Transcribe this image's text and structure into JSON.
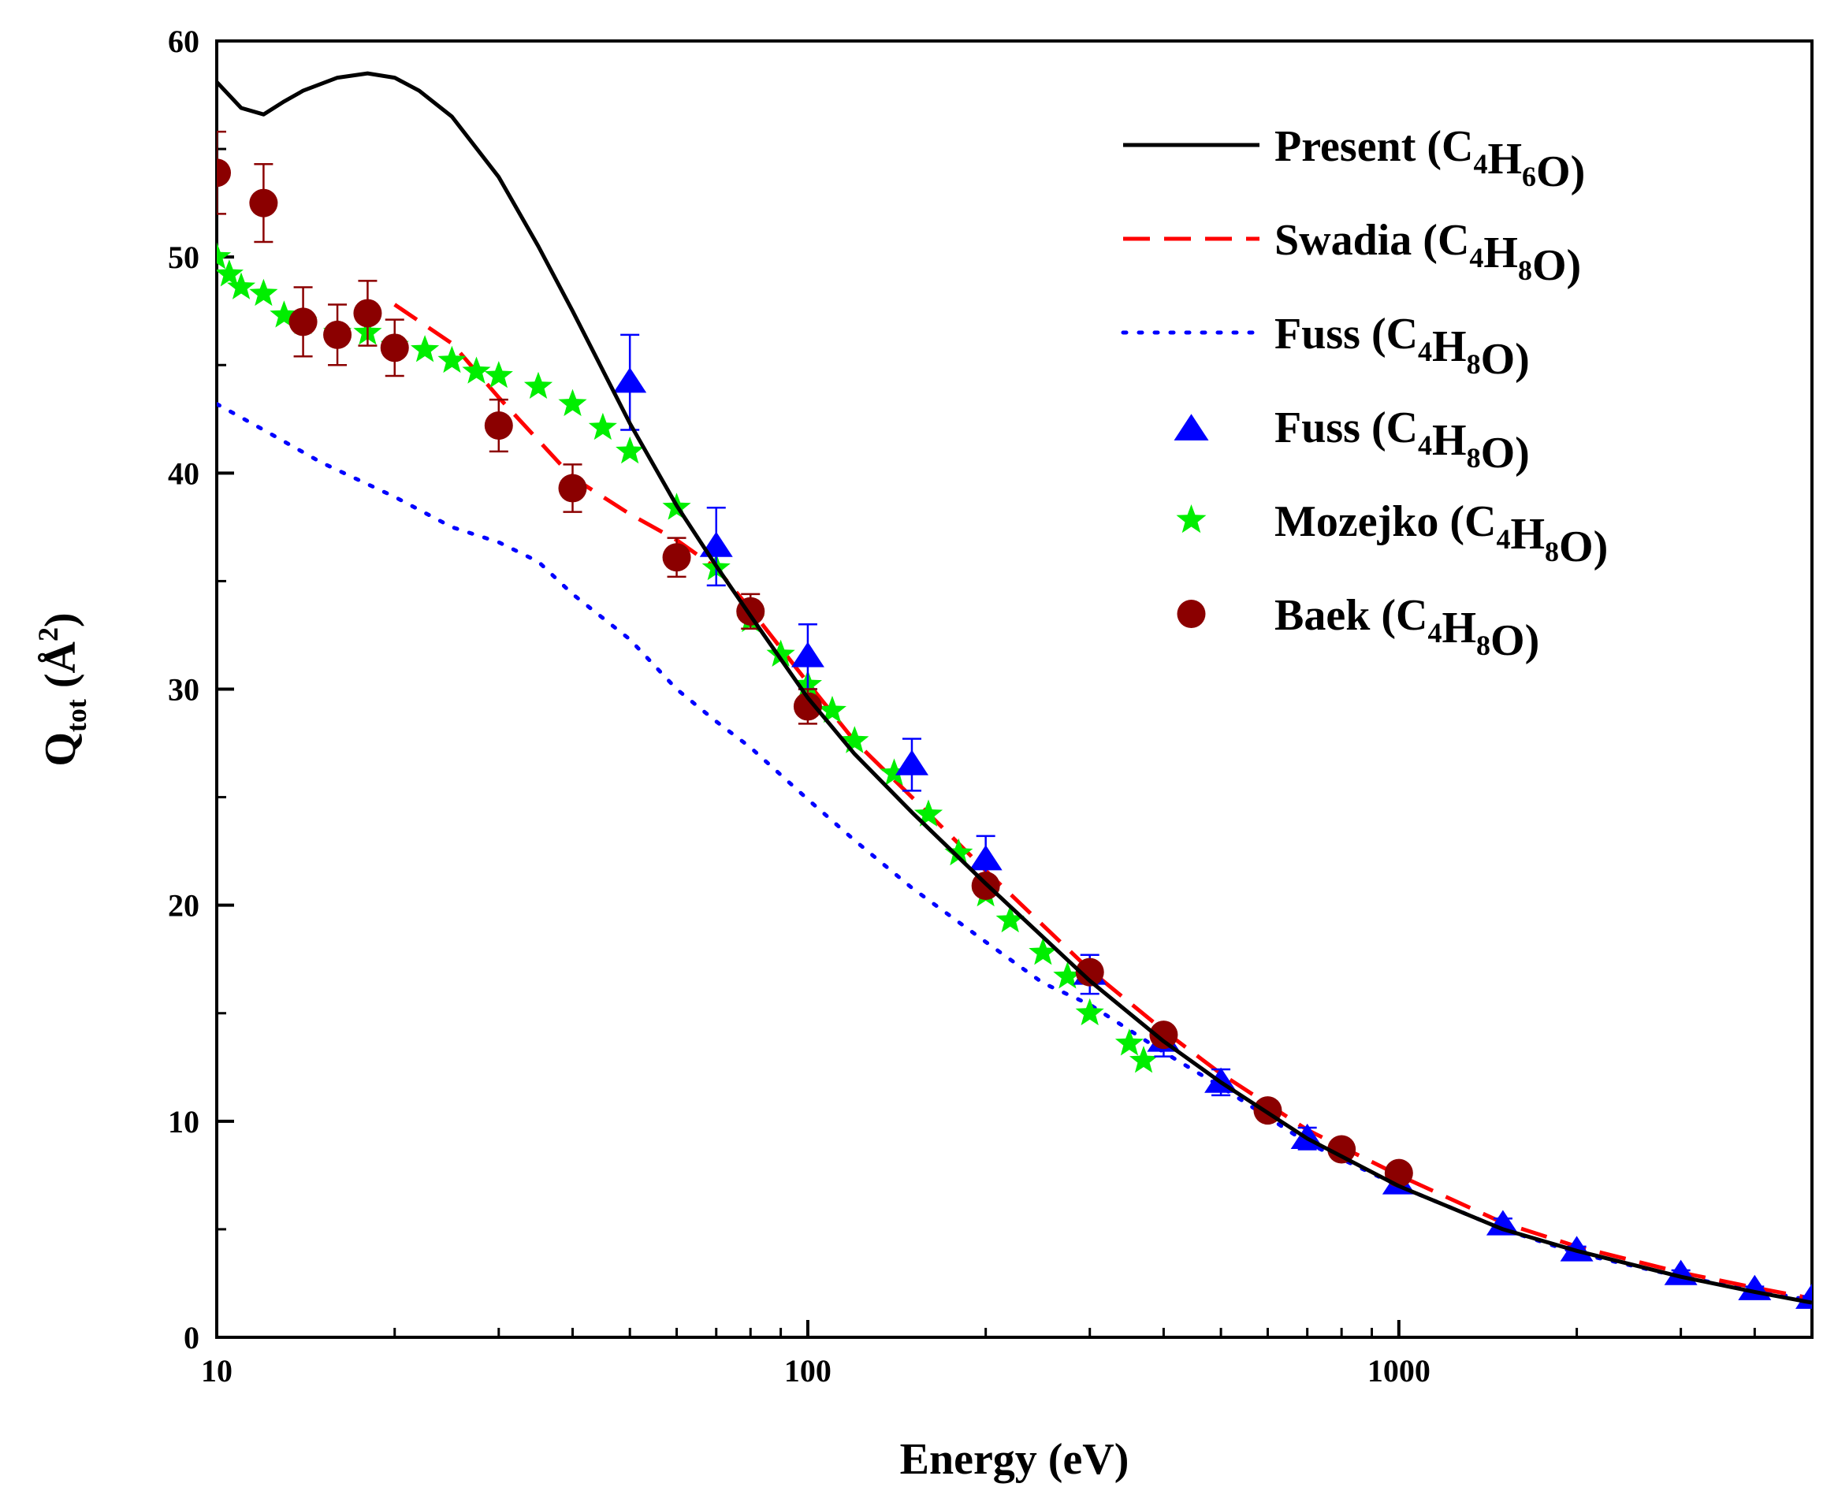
{
  "chart_data": {
    "type": "line",
    "title": "",
    "xlabel": "Energy (eV)",
    "ylabel": {
      "main": "Q",
      "sub": "tot",
      "unit_open": " (Å",
      "unit_sup": "2",
      "unit_close": ")"
    },
    "xscale": "log",
    "xlim": [
      10,
      5000
    ],
    "ylim": [
      0,
      60
    ],
    "x_ticks": [
      10,
      100,
      1000
    ],
    "x_tick_labels": [
      "10",
      "100",
      "1000"
    ],
    "y_ticks": [
      0,
      10,
      20,
      30,
      40,
      50,
      60
    ],
    "y_tick_labels": [
      "0",
      "10",
      "20",
      "30",
      "40",
      "50",
      "60"
    ],
    "legend_position": "top-right",
    "series": [
      {
        "name": "Present (C4H6O)",
        "legend": {
          "name": "Present",
          "formula": [
            [
              "C",
              "4"
            ],
            [
              "H",
              "6"
            ],
            [
              "O",
              ""
            ]
          ]
        },
        "style": "solid",
        "color": "#000000",
        "x": [
          10,
          11,
          12,
          13,
          14,
          16,
          18,
          20,
          22,
          25,
          30,
          35,
          40,
          50,
          60,
          70,
          80,
          100,
          120,
          150,
          200,
          300,
          400,
          500,
          700,
          1000,
          1500,
          2000,
          3000,
          4000,
          5000
        ],
        "y": [
          58.1,
          56.9,
          56.6,
          57.2,
          57.7,
          58.3,
          58.5,
          58.3,
          57.7,
          56.5,
          53.7,
          50.5,
          47.5,
          42.3,
          38.5,
          35.7,
          33.4,
          29.6,
          27.0,
          24.3,
          21.0,
          16.5,
          13.7,
          11.8,
          9.2,
          7.0,
          5.0,
          4.0,
          2.8,
          2.1,
          1.6
        ]
      },
      {
        "name": "Swadia (C4H8O)",
        "legend": {
          "name": "Swadia",
          "formula": [
            [
              "C",
              "4"
            ],
            [
              "H",
              "8"
            ],
            [
              "O",
              ""
            ]
          ]
        },
        "style": "dashed",
        "color": "#ff0000",
        "x": [
          20,
          25,
          30,
          40,
          50,
          60,
          70,
          80,
          100,
          120,
          150,
          200,
          300,
          400,
          500,
          700,
          1000,
          1500,
          2000,
          3000,
          4000,
          5000
        ],
        "y": [
          47.8,
          46.0,
          43.5,
          39.8,
          38.1,
          36.9,
          35.6,
          33.7,
          30.3,
          27.6,
          25.0,
          21.6,
          17.0,
          14.2,
          12.2,
          9.6,
          7.5,
          5.3,
          4.2,
          3.0,
          2.3,
          1.8
        ]
      },
      {
        "name": "Fuss (C4H8O)",
        "legend": {
          "name": "Fuss",
          "formula": [
            [
              "C",
              "4"
            ],
            [
              "H",
              "8"
            ],
            [
              "O",
              ""
            ]
          ]
        },
        "style": "dotted",
        "color": "#0000ff",
        "x": [
          10,
          12,
          15,
          20,
          25,
          30,
          35,
          40,
          50,
          60,
          70,
          80,
          100,
          120,
          150,
          200,
          250,
          300,
          400,
          500,
          700,
          1000,
          1500,
          2000,
          3000,
          4000,
          5000
        ],
        "y": [
          43.2,
          42.0,
          40.5,
          38.9,
          37.5,
          36.8,
          35.9,
          34.4,
          32.3,
          30.0,
          28.5,
          27.3,
          24.9,
          23.0,
          20.8,
          18.3,
          16.4,
          15.4,
          13.2,
          11.6,
          9.0,
          7.0,
          5.0,
          3.9,
          2.8,
          2.2,
          1.7
        ]
      },
      {
        "name": "Fuss (C4H8O) data",
        "legend": {
          "name": "Fuss",
          "formula": [
            [
              "C",
              "4"
            ],
            [
              "H",
              "8"
            ],
            [
              "O",
              ""
            ]
          ]
        },
        "style": "triangle",
        "color": "#0000ff",
        "x": [
          50,
          70,
          100,
          150,
          200,
          300,
          400,
          500,
          700,
          1000,
          1500,
          2000,
          3000,
          4000,
          5000
        ],
        "y": [
          44.2,
          36.6,
          31.5,
          26.5,
          22.1,
          16.8,
          13.7,
          11.8,
          9.2,
          7.1,
          5.2,
          4.0,
          2.9,
          2.2,
          1.8
        ],
        "err": [
          2.2,
          1.8,
          1.5,
          1.2,
          1.1,
          0.9,
          0.7,
          0.6,
          0.5,
          0.4,
          0.3,
          0.2,
          0.2,
          0.15,
          0.1
        ]
      },
      {
        "name": "Mozejko (C4H8O)",
        "legend": {
          "name": "Mozejko",
          "formula": [
            [
              "C",
              "4"
            ],
            [
              "H",
              "8"
            ],
            [
              "O",
              ""
            ]
          ]
        },
        "style": "star",
        "color": "#00ee00",
        "x": [
          10,
          10.5,
          11,
          12,
          13,
          14,
          16,
          18,
          20,
          22.5,
          25,
          27.5,
          30,
          35,
          40,
          45,
          50,
          60,
          70,
          80,
          90,
          100,
          110,
          120,
          140,
          160,
          180,
          200,
          220,
          250,
          275,
          300,
          350,
          370
        ],
        "y": [
          50.0,
          49.2,
          48.6,
          48.3,
          47.3,
          47.0,
          46.5,
          46.5,
          45.9,
          45.7,
          45.2,
          44.7,
          44.5,
          44.0,
          43.2,
          42.1,
          41.0,
          38.4,
          35.6,
          33.2,
          31.6,
          30.2,
          29.0,
          27.6,
          26.1,
          24.2,
          22.4,
          20.5,
          19.3,
          17.8,
          16.7,
          15.0,
          13.6,
          12.8
        ]
      },
      {
        "name": "Baek (C4H8O)",
        "legend": {
          "name": "Baek",
          "formula": [
            [
              "C",
              "4"
            ],
            [
              "H",
              "8"
            ],
            [
              "O",
              ""
            ]
          ]
        },
        "style": "circle",
        "color": "#8b0000",
        "x": [
          10,
          12,
          14,
          16,
          18,
          20,
          30,
          40,
          60,
          80,
          100,
          200,
          300,
          400,
          600,
          800,
          1000
        ],
        "y": [
          53.9,
          52.5,
          47.0,
          46.4,
          47.4,
          45.8,
          42.2,
          39.3,
          36.1,
          33.6,
          29.2,
          20.9,
          16.9,
          14.0,
          10.5,
          8.7,
          7.6
        ],
        "err": [
          1.9,
          1.8,
          1.6,
          1.4,
          1.5,
          1.3,
          1.2,
          1.1,
          0.9,
          0.8,
          0.8,
          0,
          0,
          0,
          0,
          0,
          0
        ]
      }
    ]
  }
}
